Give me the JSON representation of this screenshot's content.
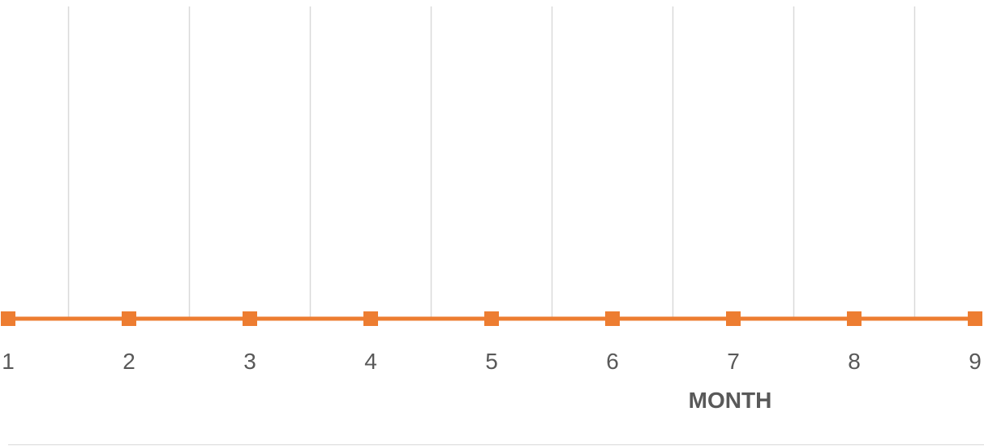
{
  "chart_data": {
    "type": "line",
    "xlabel": "MONTH",
    "ylabel": "",
    "x": [
      1,
      2,
      3,
      4,
      5,
      6,
      7,
      8,
      9
    ],
    "xtick_labels": [
      "1",
      "2",
      "3",
      "4",
      "5",
      "6",
      "7",
      "8",
      "9"
    ],
    "series": [
      {
        "values": [
          0,
          0,
          0,
          0,
          0,
          0,
          0,
          0,
          0
        ],
        "color": "#ED7D31",
        "marker": "square"
      }
    ],
    "gridlines": "vertical",
    "grid_color": "#D9D9D9",
    "axis_label_color": "#595959"
  }
}
